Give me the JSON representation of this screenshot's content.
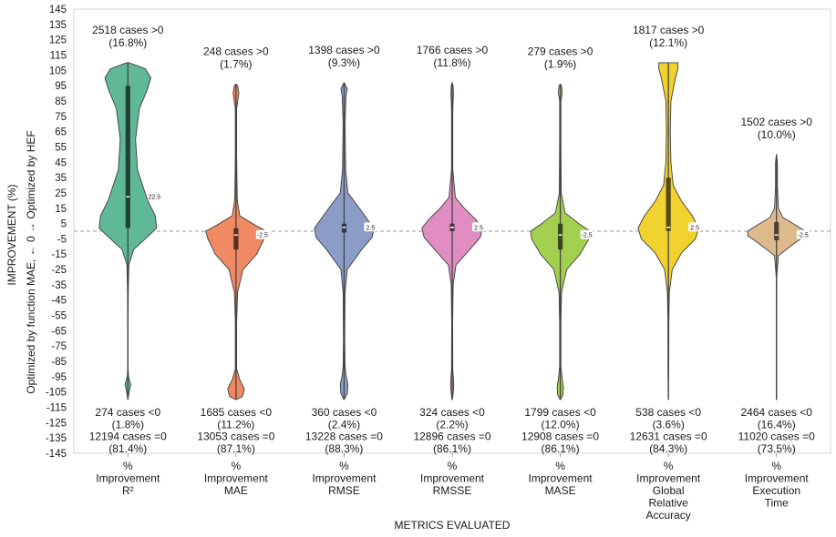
{
  "chart_data": {
    "type": "violin",
    "title": "",
    "xlabel": "METRICS EVALUATED",
    "ylabel": "IMPROVEMENT (%)",
    "ylabel2": "Optimized by function MAE, ←   0   → Optimized by HEF",
    "ylim": [
      -145,
      145
    ],
    "yticks": [
      "145",
      "135",
      "125",
      "115",
      "105",
      "95",
      "85",
      "75",
      "65",
      "55",
      "45",
      "35",
      "25",
      "15",
      "5",
      "-5",
      "-15",
      "-25",
      "-35",
      "-45",
      "-55",
      "-65",
      "-75",
      "-85",
      "-95",
      "-105",
      "-115",
      "-125",
      "-135",
      "-145"
    ],
    "reference_line": 0,
    "series": [
      {
        "name": "Improvement R2",
        "label_lines": [
          "%",
          "Improvement",
          "R²"
        ],
        "color": "#5fb896",
        "pos_count": "2518 cases >0",
        "pos_pct": "(16.8%)",
        "neg_count": "274 cases <0",
        "neg_pct": "(1.8%)",
        "zero_count": "12194 cases =0",
        "zero_pct": "(81.4%)",
        "median": 22.5,
        "median_label": "22.5",
        "q1": 2,
        "q3": 95,
        "whisker_low": -110,
        "whisker_high": 110,
        "profile": [
          [
            -110,
            0.002
          ],
          [
            -106,
            0.03
          ],
          [
            -100,
            0.09
          ],
          [
            -95,
            0.02
          ],
          [
            -90,
            0.008
          ],
          [
            -70,
            0.006
          ],
          [
            -40,
            0.012
          ],
          [
            -22,
            0.03
          ],
          [
            -12,
            0.18
          ],
          [
            -4,
            0.6
          ],
          [
            2,
            0.9
          ],
          [
            10,
            0.86
          ],
          [
            20,
            0.62
          ],
          [
            40,
            0.3
          ],
          [
            60,
            0.24
          ],
          [
            80,
            0.36
          ],
          [
            92,
            0.6
          ],
          [
            100,
            0.72
          ],
          [
            106,
            0.55
          ],
          [
            110,
            0.04
          ]
        ]
      },
      {
        "name": "Improvement MAE",
        "label_lines": [
          "%",
          "Improvement",
          "MAE"
        ],
        "color": "#ef8a65",
        "pos_count": "248 cases >0",
        "pos_pct": "(1.7%)",
        "neg_count": "1685 cases <0",
        "neg_pct": "(11.2%)",
        "zero_count": "13053 cases =0",
        "zero_pct": "(87.1%)",
        "median": -2.5,
        "median_label": "-2.5",
        "q1": -12,
        "q3": 2,
        "whisker_low": -110,
        "whisker_high": 96,
        "profile": [
          [
            -110,
            0.004
          ],
          [
            -108,
            0.2
          ],
          [
            -103,
            0.26
          ],
          [
            -97,
            0.12
          ],
          [
            -90,
            0.02
          ],
          [
            -60,
            0.02
          ],
          [
            -40,
            0.05
          ],
          [
            -25,
            0.22
          ],
          [
            -15,
            0.65
          ],
          [
            -5,
            0.88
          ],
          [
            0,
            0.95
          ],
          [
            4,
            0.6
          ],
          [
            10,
            0.12
          ],
          [
            20,
            0.04
          ],
          [
            50,
            0.02
          ],
          [
            80,
            0.02
          ],
          [
            90,
            0.09
          ],
          [
            95,
            0.05
          ],
          [
            96,
            0.004
          ]
        ]
      },
      {
        "name": "Improvement RMSE",
        "label_lines": [
          "%",
          "Improvement",
          "RMSE"
        ],
        "color": "#8b9dc7",
        "pos_count": "1398 cases >0",
        "pos_pct": "(9.3%)",
        "neg_count": "360 cases <0",
        "neg_pct": "(2.4%)",
        "zero_count": "13228 cases =0",
        "zero_pct": "(88.3%)",
        "median": 2.5,
        "median_label": "2.5",
        "q1": -1,
        "q3": 5,
        "whisker_low": -110,
        "whisker_high": 97,
        "profile": [
          [
            -110,
            0.004
          ],
          [
            -106,
            0.1
          ],
          [
            -100,
            0.12
          ],
          [
            -94,
            0.06
          ],
          [
            -88,
            0.03
          ],
          [
            -70,
            0.02
          ],
          [
            -40,
            0.03
          ],
          [
            -25,
            0.1
          ],
          [
            -12,
            0.55
          ],
          [
            -4,
            0.88
          ],
          [
            2,
            0.93
          ],
          [
            8,
            0.72
          ],
          [
            15,
            0.48
          ],
          [
            25,
            0.12
          ],
          [
            40,
            0.05
          ],
          [
            70,
            0.03
          ],
          [
            88,
            0.06
          ],
          [
            93,
            0.1
          ],
          [
            97,
            0.004
          ]
        ]
      },
      {
        "name": "Improvement RMSSE",
        "label_lines": [
          "%",
          "Improvement",
          "RMSSE"
        ],
        "color": "#e08ec1",
        "pos_count": "1766 cases >0",
        "pos_pct": "(11.8%)",
        "neg_count": "324 cases <0",
        "neg_pct": "(2.2%)",
        "zero_count": "12896 cases =0",
        "zero_pct": "(86.1%)",
        "median": 2.5,
        "median_label": "2.5",
        "q1": 0,
        "q3": 5,
        "whisker_low": -110,
        "whisker_high": 97,
        "profile": [
          [
            -110,
            0.004
          ],
          [
            -106,
            0.03
          ],
          [
            -100,
            0.05
          ],
          [
            -90,
            0.02
          ],
          [
            -60,
            0.015
          ],
          [
            -35,
            0.03
          ],
          [
            -22,
            0.12
          ],
          [
            -12,
            0.55
          ],
          [
            -4,
            0.88
          ],
          [
            2,
            0.95
          ],
          [
            8,
            0.72
          ],
          [
            15,
            0.38
          ],
          [
            22,
            0.1
          ],
          [
            40,
            0.02
          ],
          [
            80,
            0.02
          ],
          [
            90,
            0.04
          ],
          [
            95,
            0.03
          ],
          [
            97,
            0.003
          ]
        ]
      },
      {
        "name": "Improvement MASE",
        "label_lines": [
          "%",
          "Improvement",
          "MASE"
        ],
        "color": "#a3cf4f",
        "pos_count": "279 cases >0",
        "pos_pct": "(1.9%)",
        "neg_count": "1799 cases <0",
        "neg_pct": "(12.0%)",
        "zero_count": "12908 cases =0",
        "zero_pct": "(86.1%)",
        "median": -2.5,
        "median_label": "-2.5",
        "q1": -12,
        "q3": 5,
        "whisker_low": -110,
        "whisker_high": 96,
        "profile": [
          [
            -110,
            0.004
          ],
          [
            -107,
            0.08
          ],
          [
            -102,
            0.1
          ],
          [
            -95,
            0.05
          ],
          [
            -88,
            0.02
          ],
          [
            -60,
            0.02
          ],
          [
            -40,
            0.04
          ],
          [
            -25,
            0.2
          ],
          [
            -15,
            0.62
          ],
          [
            -5,
            0.9
          ],
          [
            0,
            0.93
          ],
          [
            5,
            0.58
          ],
          [
            12,
            0.15
          ],
          [
            25,
            0.03
          ],
          [
            60,
            0.02
          ],
          [
            85,
            0.02
          ],
          [
            90,
            0.06
          ],
          [
            95,
            0.04
          ],
          [
            96,
            0.004
          ]
        ]
      },
      {
        "name": "Improvement Global Relative Accuracy",
        "label_lines": [
          "%",
          "Improvement",
          "Global",
          "Relative",
          "Accuracy"
        ],
        "color": "#f2d22e",
        "pos_count": "1817 cases >0",
        "pos_pct": "(12.1%)",
        "neg_count": "538 cases <0",
        "neg_pct": "(3.6%)",
        "zero_count": "12631 cases =0",
        "zero_pct": "(84.3%)",
        "median": 2.5,
        "median_label": "2.5",
        "q1": 0,
        "q3": 35,
        "whisker_low": -110,
        "whisker_high": 110,
        "profile": [
          [
            -110,
            0.002
          ],
          [
            -90,
            0.012
          ],
          [
            -60,
            0.015
          ],
          [
            -40,
            0.03
          ],
          [
            -25,
            0.12
          ],
          [
            -14,
            0.42
          ],
          [
            -5,
            0.85
          ],
          [
            2,
            0.95
          ],
          [
            10,
            0.75
          ],
          [
            20,
            0.4
          ],
          [
            30,
            0.15
          ],
          [
            45,
            0.08
          ],
          [
            65,
            0.06
          ],
          [
            85,
            0.08
          ],
          [
            100,
            0.22
          ],
          [
            106,
            0.3
          ],
          [
            110,
            0.3
          ]
        ]
      },
      {
        "name": "Improvement Execution Time",
        "label_lines": [
          "%",
          "Improvement",
          "Execution",
          "Time"
        ],
        "color": "#dcba8c",
        "pos_count": "1502 cases >0",
        "pos_pct": "(10.0%)",
        "neg_count": "2464 cases <0",
        "neg_pct": "(16.4%)",
        "zero_count": "11020 cases =0",
        "zero_pct": "(73.5%)",
        "median": -2.5,
        "median_label": "-2.5",
        "q1": -6,
        "q3": 6,
        "whisker_low": -110,
        "whisker_high": 50,
        "profile": [
          [
            -110,
            0.002
          ],
          [
            -60,
            0.004
          ],
          [
            -30,
            0.008
          ],
          [
            -16,
            0.06
          ],
          [
            -8,
            0.55
          ],
          [
            -3,
            0.9
          ],
          [
            0,
            0.9
          ],
          [
            4,
            0.6
          ],
          [
            9,
            0.2
          ],
          [
            15,
            0.06
          ],
          [
            30,
            0.03
          ],
          [
            45,
            0.03
          ],
          [
            50,
            0.003
          ]
        ]
      }
    ]
  }
}
